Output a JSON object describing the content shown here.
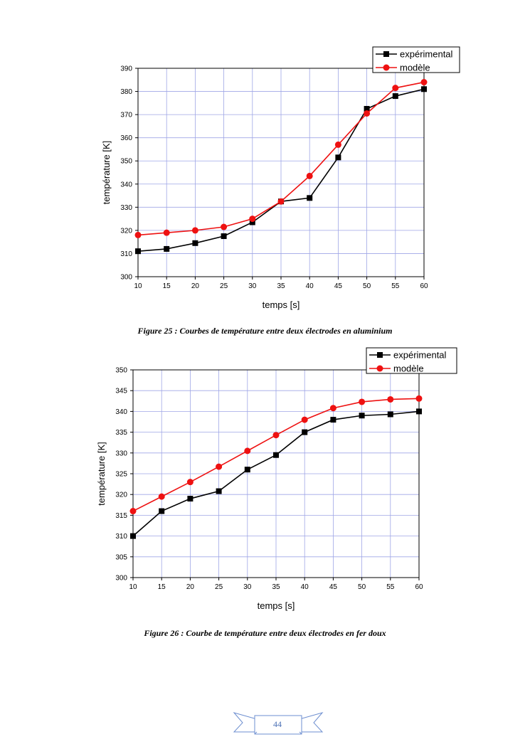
{
  "chart_data": [
    {
      "type": "line",
      "title": "",
      "xlabel": "temps [s]",
      "ylabel": "température [K]",
      "x": [
        10,
        15,
        20,
        25,
        30,
        35,
        40,
        45,
        50,
        55,
        60
      ],
      "xlim": [
        10,
        60
      ],
      "ylim": [
        300,
        390
      ],
      "xticks": [
        10,
        15,
        20,
        25,
        30,
        35,
        40,
        45,
        50,
        55,
        60
      ],
      "yticks": [
        300,
        310,
        320,
        330,
        340,
        350,
        360,
        370,
        380,
        390
      ],
      "grid": true,
      "legend_position": "top-right",
      "series": [
        {
          "name": "expérimental",
          "color": "#000000",
          "marker": "square",
          "values": [
            311,
            312,
            314.5,
            317.5,
            323.5,
            332.5,
            334,
            351.5,
            372.5,
            378,
            381
          ]
        },
        {
          "name": "modèle",
          "color": "#ee1111",
          "marker": "circle",
          "values": [
            318,
            319,
            320,
            321.5,
            325,
            332.5,
            343.5,
            357,
            370.5,
            381.5,
            384
          ]
        }
      ]
    },
    {
      "type": "line",
      "title": "",
      "xlabel": "temps [s]",
      "ylabel": "température [K]",
      "x": [
        10,
        15,
        20,
        25,
        30,
        35,
        40,
        45,
        50,
        55,
        60
      ],
      "xlim": [
        10,
        60
      ],
      "ylim": [
        300,
        350
      ],
      "xticks": [
        10,
        15,
        20,
        25,
        30,
        35,
        40,
        45,
        50,
        55,
        60
      ],
      "yticks": [
        300,
        305,
        310,
        315,
        320,
        325,
        330,
        335,
        340,
        345,
        350
      ],
      "grid": true,
      "legend_position": "top-right",
      "series": [
        {
          "name": "expérimental",
          "color": "#000000",
          "marker": "square",
          "values": [
            310,
            316,
            319,
            320.8,
            326,
            329.5,
            335,
            338,
            339,
            339.3,
            340
          ]
        },
        {
          "name": "modèle",
          "color": "#ee1111",
          "marker": "circle",
          "values": [
            316,
            319.5,
            323,
            326.7,
            330.5,
            334.3,
            338,
            340.8,
            342.3,
            342.9,
            343.1
          ]
        }
      ]
    }
  ],
  "captions": {
    "figure25": "Figure 25 : Courbes de température entre deux électrodes en aluminium",
    "figure26": "Figure 26 : Courbe de température entre deux électrodes en fer doux"
  },
  "page_number": "44"
}
